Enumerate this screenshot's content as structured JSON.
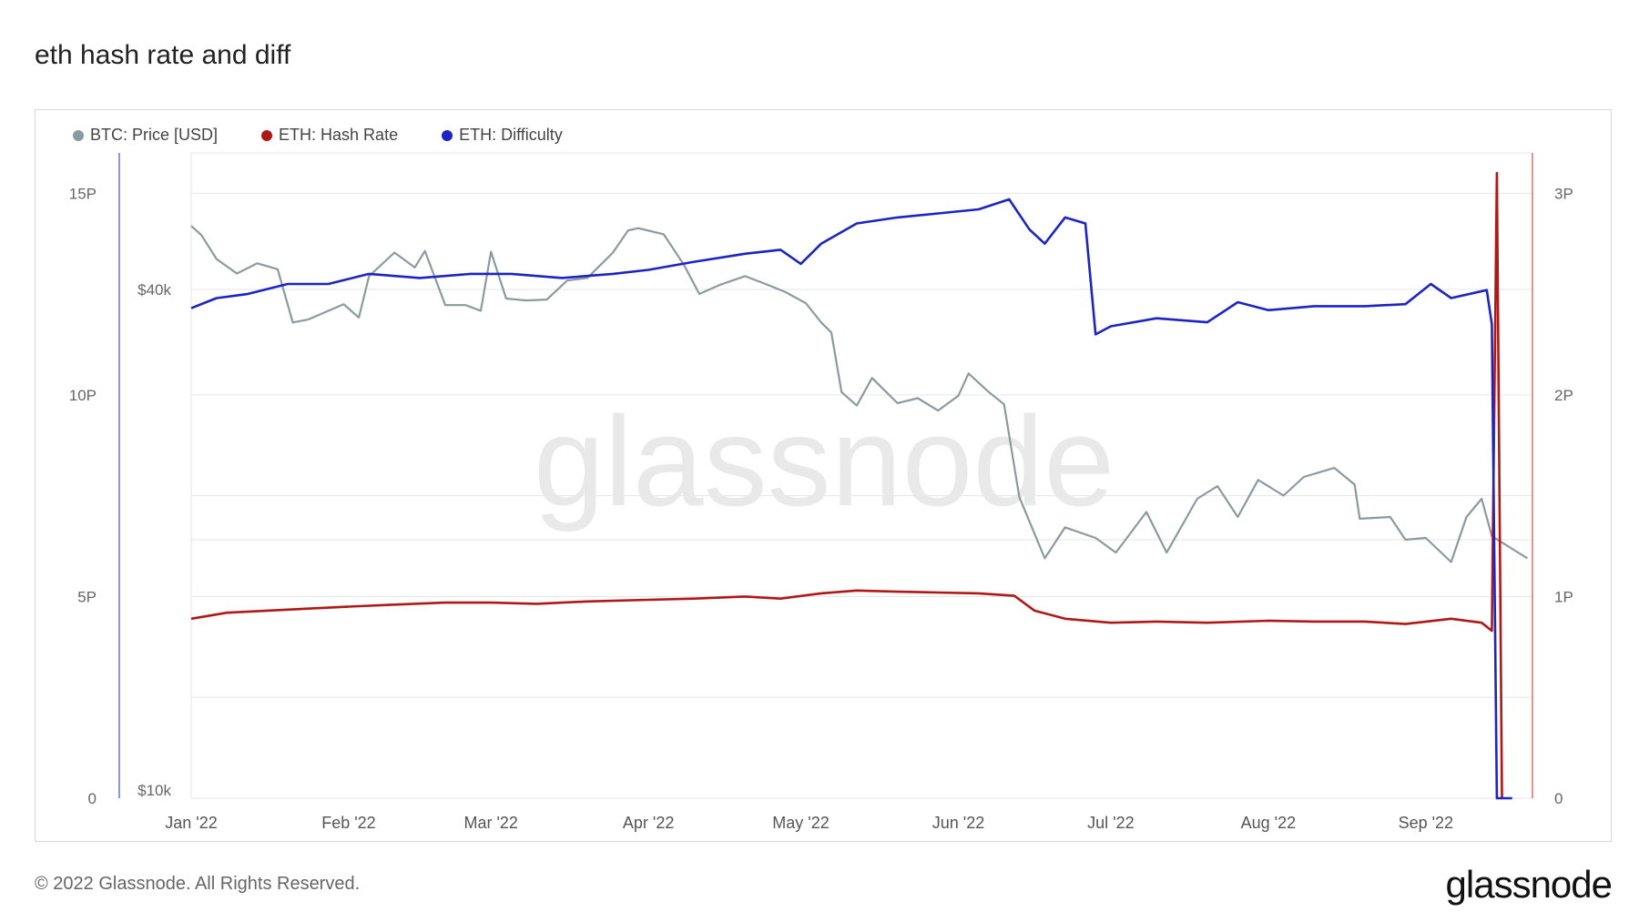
{
  "page": {
    "title": "eth hash rate and diff",
    "copyright": "© 2022 Glassnode. All Rights Reserved.",
    "logo": "glassnode",
    "watermark": "glassnode"
  },
  "colors": {
    "price": "#8a9ba0",
    "hashrate": "#b01818",
    "difficulty": "#1c24c4",
    "grid": "#e6e6e6"
  },
  "chart_data": {
    "type": "line",
    "title": "eth hash rate and diff",
    "legend_position": "top-left",
    "grid": true,
    "x_ticks": [
      "Jan '22",
      "Feb '22",
      "Mar '22",
      "Apr '22",
      "May '22",
      "Jun '22",
      "Jul '22",
      "Aug '22",
      "Sep '22"
    ],
    "left_axis_hashrate": {
      "ticks": [
        "0",
        "5P",
        "10P",
        "15P"
      ],
      "ylim": [
        0,
        16
      ]
    },
    "left_axis_price": {
      "ticks": [
        "$10k",
        "$40k"
      ],
      "scale": "log"
    },
    "right_axis_difficulty": {
      "ticks": [
        "0",
        "1P",
        "2P",
        "3P"
      ],
      "ylim": [
        0,
        3.2
      ]
    },
    "series": [
      {
        "name": "BTC: Price [USD]",
        "axis": "price",
        "points": [
          [
            "2022-01-01",
            47700
          ],
          [
            "2022-01-03",
            46500
          ],
          [
            "2022-01-06",
            43500
          ],
          [
            "2022-01-10",
            41800
          ],
          [
            "2022-01-14",
            43000
          ],
          [
            "2022-01-18",
            42300
          ],
          [
            "2022-01-21",
            36500
          ],
          [
            "2022-01-24",
            36800
          ],
          [
            "2022-01-28",
            37700
          ],
          [
            "2022-01-31",
            38400
          ],
          [
            "2022-02-03",
            37000
          ],
          [
            "2022-02-05",
            41500
          ],
          [
            "2022-02-10",
            44300
          ],
          [
            "2022-02-14",
            42500
          ],
          [
            "2022-02-16",
            44500
          ],
          [
            "2022-02-20",
            38300
          ],
          [
            "2022-02-24",
            38300
          ],
          [
            "2022-02-27",
            37700
          ],
          [
            "2022-03-01",
            44400
          ],
          [
            "2022-03-04",
            39000
          ],
          [
            "2022-03-08",
            38800
          ],
          [
            "2022-03-12",
            38900
          ],
          [
            "2022-03-16",
            41000
          ],
          [
            "2022-03-20",
            41300
          ],
          [
            "2022-03-25",
            44300
          ],
          [
            "2022-03-28",
            47100
          ],
          [
            "2022-03-30",
            47400
          ],
          [
            "2022-04-04",
            46600
          ],
          [
            "2022-04-08",
            42800
          ],
          [
            "2022-04-11",
            39500
          ],
          [
            "2022-04-15",
            40500
          ],
          [
            "2022-04-20",
            41500
          ],
          [
            "2022-04-25",
            40400
          ],
          [
            "2022-04-28",
            39700
          ],
          [
            "2022-05-02",
            38500
          ],
          [
            "2022-05-05",
            36500
          ],
          [
            "2022-05-07",
            35500
          ],
          [
            "2022-05-09",
            30100
          ],
          [
            "2022-05-12",
            29000
          ],
          [
            "2022-05-15",
            31300
          ],
          [
            "2022-05-20",
            29200
          ],
          [
            "2022-05-24",
            29600
          ],
          [
            "2022-05-28",
            28600
          ],
          [
            "2022-06-01",
            29800
          ],
          [
            "2022-06-03",
            31700
          ],
          [
            "2022-06-07",
            30100
          ],
          [
            "2022-06-10",
            29100
          ],
          [
            "2022-06-13",
            22500
          ],
          [
            "2022-06-18",
            19000
          ],
          [
            "2022-06-22",
            20700
          ],
          [
            "2022-06-28",
            20100
          ],
          [
            "2022-07-02",
            19300
          ],
          [
            "2022-07-08",
            21600
          ],
          [
            "2022-07-12",
            19300
          ],
          [
            "2022-07-18",
            22400
          ],
          [
            "2022-07-22",
            23200
          ],
          [
            "2022-07-26",
            21300
          ],
          [
            "2022-07-30",
            23600
          ],
          [
            "2022-08-04",
            22600
          ],
          [
            "2022-08-08",
            23800
          ],
          [
            "2022-08-14",
            24400
          ],
          [
            "2022-08-18",
            23300
          ],
          [
            "2022-08-19",
            21200
          ],
          [
            "2022-08-25",
            21300
          ],
          [
            "2022-08-28",
            20000
          ],
          [
            "2022-09-01",
            20100
          ],
          [
            "2022-09-06",
            18800
          ],
          [
            "2022-09-09",
            21300
          ],
          [
            "2022-09-12",
            22400
          ],
          [
            "2022-09-14",
            20200
          ],
          [
            "2022-09-18",
            19500
          ],
          [
            "2022-09-21",
            19000
          ]
        ]
      },
      {
        "name": "ETH: Hash Rate",
        "axis": "hashrate",
        "points": [
          [
            "2022-01-01",
            4.45
          ],
          [
            "2022-01-08",
            4.6
          ],
          [
            "2022-01-16",
            4.65
          ],
          [
            "2022-01-24",
            4.7
          ],
          [
            "2022-02-01",
            4.75
          ],
          [
            "2022-02-10",
            4.8
          ],
          [
            "2022-02-20",
            4.85
          ],
          [
            "2022-03-01",
            4.85
          ],
          [
            "2022-03-10",
            4.82
          ],
          [
            "2022-03-20",
            4.88
          ],
          [
            "2022-04-01",
            4.92
          ],
          [
            "2022-04-10",
            4.95
          ],
          [
            "2022-04-20",
            5.0
          ],
          [
            "2022-04-27",
            4.95
          ],
          [
            "2022-05-05",
            5.08
          ],
          [
            "2022-05-12",
            5.15
          ],
          [
            "2022-05-20",
            5.12
          ],
          [
            "2022-05-28",
            5.1
          ],
          [
            "2022-06-05",
            5.08
          ],
          [
            "2022-06-12",
            5.02
          ],
          [
            "2022-06-16",
            4.65
          ],
          [
            "2022-06-22",
            4.45
          ],
          [
            "2022-07-01",
            4.35
          ],
          [
            "2022-07-10",
            4.38
          ],
          [
            "2022-07-20",
            4.35
          ],
          [
            "2022-08-01",
            4.4
          ],
          [
            "2022-08-10",
            4.38
          ],
          [
            "2022-08-20",
            4.38
          ],
          [
            "2022-08-28",
            4.32
          ],
          [
            "2022-09-06",
            4.45
          ],
          [
            "2022-09-12",
            4.35
          ],
          [
            "2022-09-14",
            4.15
          ],
          [
            "2022-09-15",
            15.5
          ],
          [
            "2022-09-16",
            0
          ]
        ]
      },
      {
        "name": "ETH: Difficulty",
        "axis": "difficulty",
        "points": [
          [
            "2022-01-01",
            2.43
          ],
          [
            "2022-01-06",
            2.48
          ],
          [
            "2022-01-12",
            2.5
          ],
          [
            "2022-01-20",
            2.55
          ],
          [
            "2022-01-28",
            2.55
          ],
          [
            "2022-02-05",
            2.6
          ],
          [
            "2022-02-15",
            2.58
          ],
          [
            "2022-02-25",
            2.6
          ],
          [
            "2022-03-05",
            2.6
          ],
          [
            "2022-03-15",
            2.58
          ],
          [
            "2022-03-25",
            2.6
          ],
          [
            "2022-04-01",
            2.62
          ],
          [
            "2022-04-10",
            2.66
          ],
          [
            "2022-04-20",
            2.7
          ],
          [
            "2022-04-27",
            2.72
          ],
          [
            "2022-05-01",
            2.65
          ],
          [
            "2022-05-05",
            2.75
          ],
          [
            "2022-05-12",
            2.85
          ],
          [
            "2022-05-20",
            2.88
          ],
          [
            "2022-05-28",
            2.9
          ],
          [
            "2022-06-05",
            2.92
          ],
          [
            "2022-06-11",
            2.97
          ],
          [
            "2022-06-15",
            2.82
          ],
          [
            "2022-06-18",
            2.75
          ],
          [
            "2022-06-22",
            2.88
          ],
          [
            "2022-06-26",
            2.85
          ],
          [
            "2022-06-28",
            2.3
          ],
          [
            "2022-07-01",
            2.34
          ],
          [
            "2022-07-10",
            2.38
          ],
          [
            "2022-07-20",
            2.36
          ],
          [
            "2022-07-26",
            2.46
          ],
          [
            "2022-08-01",
            2.42
          ],
          [
            "2022-08-10",
            2.44
          ],
          [
            "2022-08-20",
            2.44
          ],
          [
            "2022-08-28",
            2.45
          ],
          [
            "2022-09-02",
            2.55
          ],
          [
            "2022-09-06",
            2.48
          ],
          [
            "2022-09-13",
            2.52
          ],
          [
            "2022-09-14",
            2.35
          ],
          [
            "2022-09-15",
            0
          ],
          [
            "2022-09-18",
            0
          ]
        ]
      }
    ]
  }
}
